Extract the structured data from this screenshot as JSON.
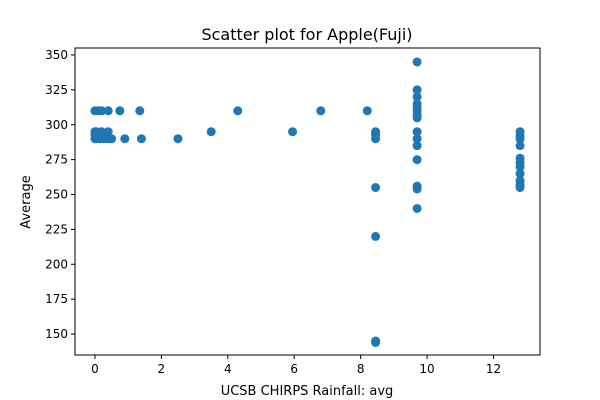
{
  "chart_data": {
    "type": "scatter",
    "title": "Scatter plot for Apple(Fuji)",
    "xlabel": "UCSB CHIRPS Rainfall: avg",
    "ylabel": "Average",
    "xlim": [
      -0.6,
      13.4
    ],
    "ylim": [
      135,
      355
    ],
    "xticks": [
      0,
      2,
      4,
      6,
      8,
      10,
      12
    ],
    "yticks": [
      150,
      175,
      200,
      225,
      250,
      275,
      300,
      325,
      350
    ],
    "marker_color": "#1f77b4",
    "grid": false,
    "points": [
      {
        "x": 0.0,
        "y": 310
      },
      {
        "x": 0.0,
        "y": 295
      },
      {
        "x": 0.0,
        "y": 293
      },
      {
        "x": 0.0,
        "y": 290
      },
      {
        "x": 0.05,
        "y": 295
      },
      {
        "x": 0.05,
        "y": 290
      },
      {
        "x": 0.1,
        "y": 310
      },
      {
        "x": 0.1,
        "y": 293
      },
      {
        "x": 0.15,
        "y": 290
      },
      {
        "x": 0.2,
        "y": 310
      },
      {
        "x": 0.2,
        "y": 295
      },
      {
        "x": 0.25,
        "y": 290
      },
      {
        "x": 0.3,
        "y": 293
      },
      {
        "x": 0.35,
        "y": 290
      },
      {
        "x": 0.4,
        "y": 310
      },
      {
        "x": 0.4,
        "y": 295
      },
      {
        "x": 0.45,
        "y": 290
      },
      {
        "x": 0.5,
        "y": 290
      },
      {
        "x": 0.75,
        "y": 310
      },
      {
        "x": 0.9,
        "y": 290
      },
      {
        "x": 1.35,
        "y": 310
      },
      {
        "x": 1.4,
        "y": 290
      },
      {
        "x": 2.5,
        "y": 290
      },
      {
        "x": 3.5,
        "y": 295
      },
      {
        "x": 4.3,
        "y": 310
      },
      {
        "x": 5.95,
        "y": 295
      },
      {
        "x": 6.8,
        "y": 310
      },
      {
        "x": 8.2,
        "y": 310
      },
      {
        "x": 8.45,
        "y": 295
      },
      {
        "x": 8.45,
        "y": 293
      },
      {
        "x": 8.45,
        "y": 290
      },
      {
        "x": 8.45,
        "y": 255
      },
      {
        "x": 8.45,
        "y": 220
      },
      {
        "x": 8.45,
        "y": 145
      },
      {
        "x": 8.45,
        "y": 144
      },
      {
        "x": 9.7,
        "y": 345
      },
      {
        "x": 9.7,
        "y": 325
      },
      {
        "x": 9.7,
        "y": 320
      },
      {
        "x": 9.7,
        "y": 315
      },
      {
        "x": 9.7,
        "y": 312
      },
      {
        "x": 9.7,
        "y": 310
      },
      {
        "x": 9.7,
        "y": 307
      },
      {
        "x": 9.7,
        "y": 305
      },
      {
        "x": 9.7,
        "y": 295
      },
      {
        "x": 9.7,
        "y": 290
      },
      {
        "x": 9.7,
        "y": 285
      },
      {
        "x": 9.7,
        "y": 275
      },
      {
        "x": 9.7,
        "y": 256
      },
      {
        "x": 9.7,
        "y": 254
      },
      {
        "x": 9.7,
        "y": 240
      },
      {
        "x": 12.8,
        "y": 295
      },
      {
        "x": 12.8,
        "y": 292
      },
      {
        "x": 12.8,
        "y": 290
      },
      {
        "x": 12.8,
        "y": 285
      },
      {
        "x": 12.8,
        "y": 276
      },
      {
        "x": 12.8,
        "y": 273
      },
      {
        "x": 12.8,
        "y": 270
      },
      {
        "x": 12.8,
        "y": 265
      },
      {
        "x": 12.8,
        "y": 260
      },
      {
        "x": 12.8,
        "y": 257
      },
      {
        "x": 12.8,
        "y": 255
      }
    ]
  }
}
